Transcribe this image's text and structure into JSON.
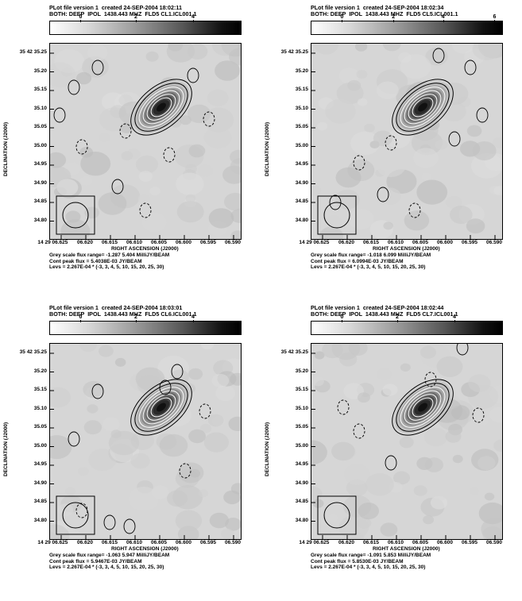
{
  "panels": [
    {
      "header_line1": "PLot file version 1  created 24-SEP-2004 18:02:11",
      "header_line2": "BOTH: DEEP  IPOL  1438.443 MHZ  FLD5 CL1.ICL001.1",
      "colorbar_ticks": [
        "0",
        "2",
        "4"
      ],
      "grey_range": "Grey scale flux range= -1.287 5.404 MilliJY/BEAM",
      "cont_peak": "Cont peak flux =  5.4038E-03 JY/BEAM",
      "levs": "Levs = 2.267E-04 * (-3, 3, 4, 5, 10, 15, 20, 25, 30)"
    },
    {
      "header_line1": "PLot file version 1  created 24-SEP-2004 18:02:34",
      "header_line2": "BOTH: DEEP  IPOL  1438.443 MHZ  FLD5 CL5.ICL001.1",
      "colorbar_ticks": [
        "0",
        "2",
        "4",
        "6"
      ],
      "grey_range": "Grey scale flux range= -1.018 6.099 MilliJY/BEAM",
      "cont_peak": "Cont peak flux =  6.0994E-03 JY/BEAM",
      "levs": "Levs = 2.267E-04 * (-3, 3, 4, 5, 10, 15, 20, 25, 30)"
    },
    {
      "header_line1": "PLot file version 1  created 24-SEP-2004 18:03:01",
      "header_line2": "BOTH: DEEP  IPOL  1438.443 MHZ  FLD5 CL6.ICL001.1",
      "colorbar_ticks": [
        "0",
        "2",
        "4"
      ],
      "grey_range": "Grey scale flux range= -1.063 5.947 MilliJY/BEAM",
      "cont_peak": "Cont peak flux =  5.9467E-03 JY/BEAM",
      "levs": "Levs = 2.267E-04 * (-3, 3, 4, 5, 10, 15, 20, 25, 30)"
    },
    {
      "header_line1": "PLot file version 1  created 24-SEP-2004 18:02:44",
      "header_line2": "BOTH: DEEP  IPOL  1438.443 MHZ  FLD5 CL7.ICL001.1",
      "colorbar_ticks": [
        "0",
        "2",
        "4"
      ],
      "grey_range": "Grey scale flux range= -1.091 5.853 MilliJY/BEAM",
      "cont_peak": "Cont peak flux =  5.8530E-03 JY/BEAM",
      "levs": "Levs = 2.267E-04 * (-3, 3, 4, 5, 10, 15, 20, 25, 30)"
    }
  ],
  "axes": {
    "dec_ticks": [
      "35 42 35.25",
      "35.20",
      "35.15",
      "35.10",
      "35.05",
      "35.00",
      "34.95",
      "34.90",
      "34.85",
      "34.80"
    ],
    "ra_ticks": [
      "14 29 06.625",
      "06.620",
      "06.615",
      "06.610",
      "06.605",
      "06.600",
      "06.595",
      "06.590"
    ],
    "dec_label": "DECLINATION (J2000)",
    "ra_label": "RIGHT ASCENSION (J2000)"
  }
}
